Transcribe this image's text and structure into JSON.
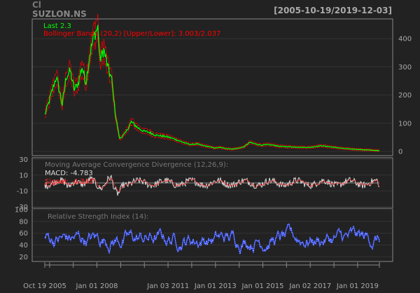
{
  "header": {
    "symbol_prefix": "Cl",
    "symbol": "SUZLON.NS",
    "date_range": "[2005-10-19/2019-12-03]"
  },
  "colors": {
    "background": "#222222",
    "frame": "#999999",
    "grid": "#333333",
    "text": "#aaaaaa",
    "price": "#00ff00",
    "bands": "#ff0000",
    "macd": "#dddddd",
    "signal": "#ff2222",
    "rsi": "#3b55ff",
    "rsi_highlight": "#ffffff"
  },
  "chart_data": [
    {
      "type": "line",
      "panel": "price",
      "legend": [
        "Last 2.3",
        "Bollinger Bands (20,2) [Upper/Lower]: 3.003/2.037"
      ],
      "ylim": [
        -15,
        470
      ],
      "yticks": [
        0,
        100,
        200,
        300,
        400
      ],
      "x": [
        "2005-10-19",
        "2005-12",
        "2006-02",
        "2006-04",
        "2006-06",
        "2006-07",
        "2006-09",
        "2006-11",
        "2007-01",
        "2007-03",
        "2007-05",
        "2007-07",
        "2007-09",
        "2007-11",
        "2008-01",
        "2008-02",
        "2008-04",
        "2008-06",
        "2008-08",
        "2008-10",
        "2008-12",
        "2009-03",
        "2009-06",
        "2009-09",
        "2009-12",
        "2010-03",
        "2010-06",
        "2010-09",
        "2010-12",
        "2011-03",
        "2011-06",
        "2011-09",
        "2011-12",
        "2012-03",
        "2012-06",
        "2012-09",
        "2012-12",
        "2013-03",
        "2013-06",
        "2013-09",
        "2013-12",
        "2014-03",
        "2014-06",
        "2014-09",
        "2014-12",
        "2015-03",
        "2015-06",
        "2015-09",
        "2015-12",
        "2016-03",
        "2016-06",
        "2016-12",
        "2017-06",
        "2017-12",
        "2018-06",
        "2018-12",
        "2019-06",
        "2019-12-03"
      ],
      "series": [
        {
          "values": [
            130,
            170,
            220,
            265,
            200,
            165,
            265,
            285,
            220,
            240,
            300,
            245,
            345,
            410,
            440,
            325,
            360,
            300,
            255,
            125,
            45,
            65,
            105,
            85,
            72,
            68,
            58,
            55,
            52,
            46,
            38,
            30,
            24,
            27,
            21,
            17,
            12,
            14,
            10,
            8,
            11,
            16,
            32,
            26,
            22,
            24,
            22,
            18,
            17,
            16,
            15,
            14,
            20,
            15,
            10,
            7,
            5,
            2.3
          ]
        }
      ],
      "bands_last": {
        "upper": 3.003,
        "lower": 2.037
      }
    },
    {
      "type": "line",
      "panel": "macd",
      "title": "Moving Average Convergence Divergence (12,26,9):",
      "legend": [
        "MACD: -4.783",
        "Signal: -4.343"
      ],
      "ylim": [
        -32,
        32
      ],
      "yticks": [
        -30,
        -10,
        10,
        30
      ],
      "last": {
        "macd": -4.783,
        "signal": -4.343
      }
    },
    {
      "type": "line",
      "panel": "rsi",
      "title": "Relative Strength Index (14):",
      "ylim": [
        12,
        100
      ],
      "yticks": [
        20,
        40,
        60,
        80,
        100
      ]
    }
  ],
  "x_axis": {
    "labels": [
      "Oct 19 2005",
      "Jan 01 2008",
      "Jan 03 2011",
      "Jan 01 2013",
      "Jan 01 2015",
      "Jan 02 2017",
      "Jan 01 2019"
    ],
    "label_dates": [
      "2005-10-19",
      "2008-01-01",
      "2011-01-03",
      "2013-01-01",
      "2015-01-01",
      "2017-01-02",
      "2019-01-01"
    ],
    "start": "2005-10-19",
    "end": "2019-12-03"
  }
}
